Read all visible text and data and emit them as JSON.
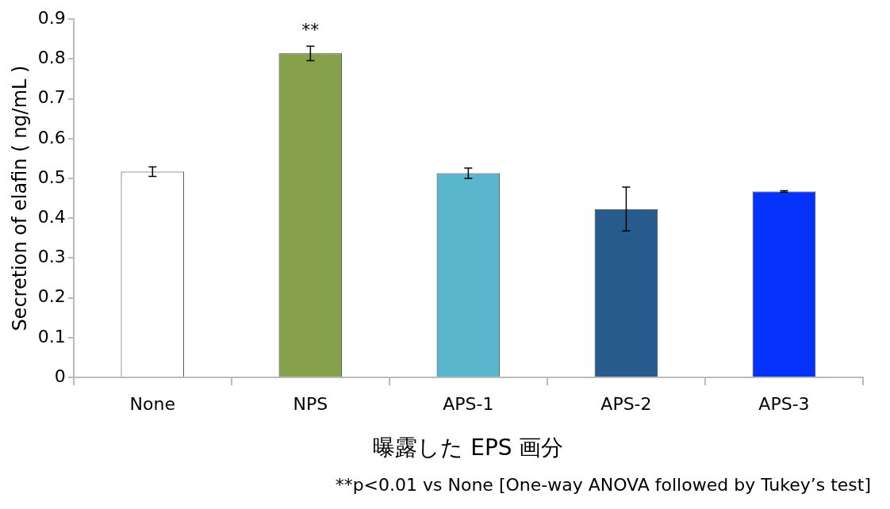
{
  "chart_data": {
    "type": "bar",
    "categories": [
      "None",
      "NPS",
      "APS-1",
      "APS-2",
      "APS-3"
    ],
    "values": [
      0.517,
      0.814,
      0.513,
      0.423,
      0.467
    ],
    "errors": [
      0.012,
      0.018,
      0.013,
      0.055,
      0.002
    ],
    "colors": [
      "#ffffff",
      "#86a04c",
      "#5ab6cc",
      "#275b8e",
      "#0532fb"
    ],
    "ylabel": "Secretion of elafin ( ng/mL )",
    "xlabel": "曝露した EPS 画分",
    "ylim": [
      0,
      0.9
    ],
    "yticks": [
      0,
      0.1,
      0.2,
      0.3,
      0.4,
      0.5,
      0.6,
      0.7,
      0.8,
      0.9
    ],
    "grid": false,
    "legend": false,
    "annotations": [
      "**",
      "**p<0.01 vs None [One-way ANOVA followed by Tukey’s test]"
    ]
  }
}
